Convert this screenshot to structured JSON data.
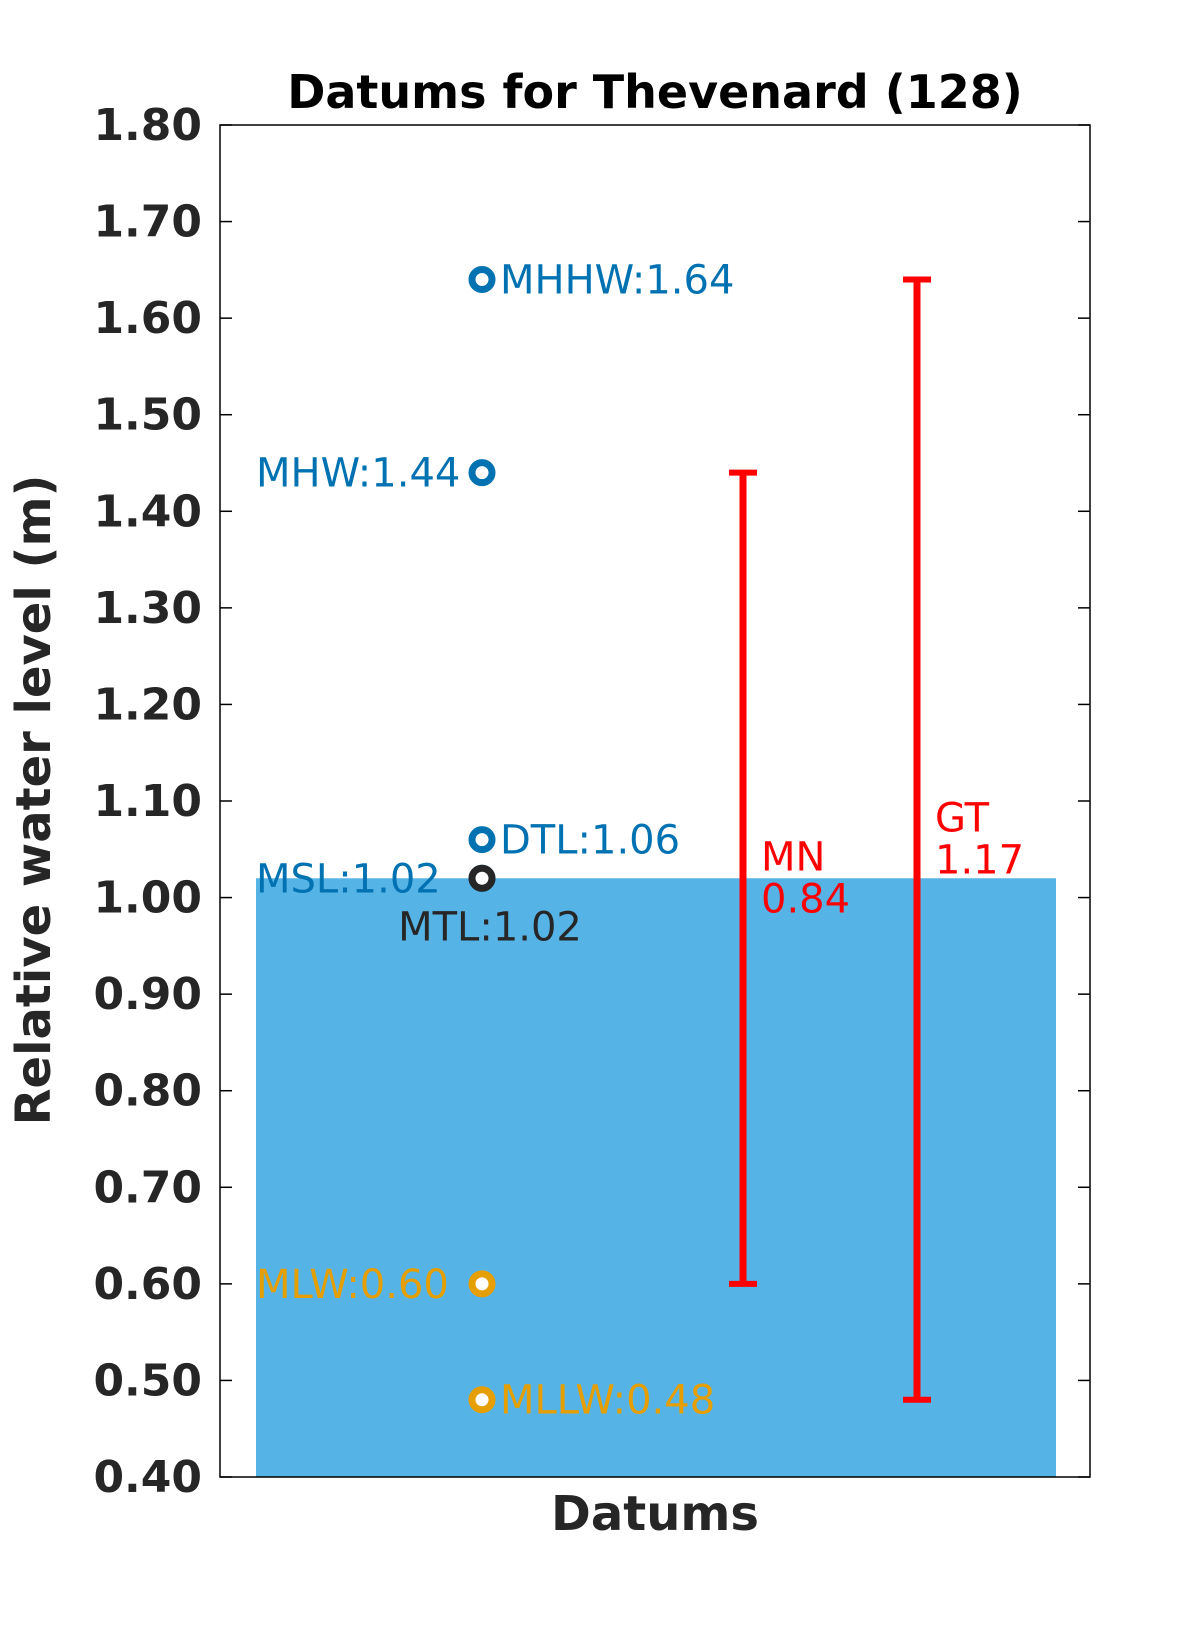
{
  "chart_data": {
    "type": "bar",
    "title": "Datums for Thevenard (128)",
    "xlabel": "Datums",
    "ylabel": "Relative water level (m)",
    "ylim": [
      0.4,
      1.8
    ],
    "yticks": [
      "0.40",
      "0.50",
      "0.60",
      "0.70",
      "0.80",
      "0.90",
      "1.00",
      "1.10",
      "1.20",
      "1.30",
      "1.40",
      "1.50",
      "1.60",
      "1.70",
      "1.80"
    ],
    "grid": false,
    "bar": {
      "value": 1.02,
      "color": "#56B3E6"
    },
    "datums": [
      {
        "name": "MHHW",
        "value": 1.64,
        "label": "MHHW:1.64",
        "color": "#0072B2",
        "label_side": "right"
      },
      {
        "name": "MHW",
        "value": 1.44,
        "label": "MHW:1.44",
        "color": "#0072B2",
        "label_side": "left"
      },
      {
        "name": "DTL",
        "value": 1.06,
        "label": "DTL:1.06",
        "color": "#0072B2",
        "label_side": "right"
      },
      {
        "name": "MSL",
        "value": 1.02,
        "label": "MSL:1.02",
        "color": "#0072B2",
        "label_side": "left"
      },
      {
        "name": "MTL",
        "value": 1.02,
        "label": "MTL:1.02",
        "color": "#262626",
        "label_side": "below"
      },
      {
        "name": "MLW",
        "value": 0.6,
        "label": "MLW:0.60",
        "color": "#E69F00",
        "label_side": "left"
      },
      {
        "name": "MLLW",
        "value": 0.48,
        "label": "MLLW:0.48",
        "color": "#E69F00",
        "label_side": "right"
      }
    ],
    "ranges": [
      {
        "name": "MN",
        "low": 0.6,
        "high": 1.44,
        "line1": "MN",
        "line2": "0.84",
        "color": "#FF0000"
      },
      {
        "name": "GT",
        "low": 0.48,
        "high": 1.64,
        "line1": "GT",
        "line2": "1.17",
        "color": "#FF0000"
      }
    ]
  }
}
